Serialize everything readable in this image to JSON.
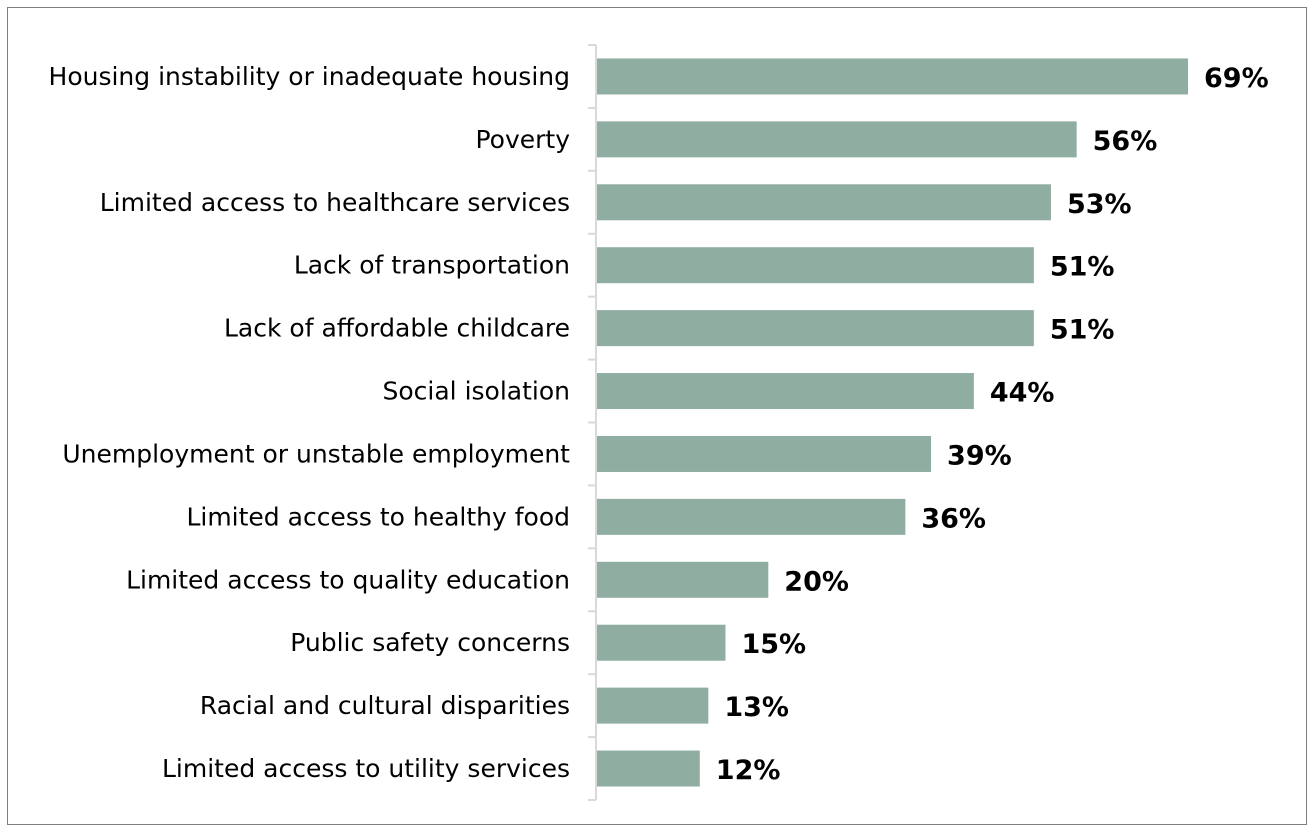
{
  "chart_data": {
    "type": "bar",
    "orientation": "horizontal",
    "title": "",
    "xlabel": "",
    "ylabel": "",
    "categories": [
      "Housing instability or inadequate housing",
      "Poverty",
      "Limited access to healthcare services",
      "Lack of transportation",
      "Lack of affordable childcare",
      "Social isolation",
      "Unemployment or unstable employment",
      "Limited access to healthy food",
      "Limited access to quality education",
      "Public safety concerns",
      "Racial and cultural disparities",
      "Limited access to utility services"
    ],
    "values": [
      69,
      56,
      53,
      51,
      51,
      44,
      39,
      36,
      20,
      15,
      13,
      12
    ],
    "value_labels": [
      "69%",
      "56%",
      "53%",
      "51%",
      "51%",
      "44%",
      "39%",
      "36%",
      "20%",
      "15%",
      "13%",
      "12%"
    ],
    "unit": "%",
    "xlim": [
      0,
      69
    ],
    "grid": false,
    "legend": "none",
    "colors": {
      "bar": "#8fada0",
      "axis": "#d9d9d9",
      "frame": "#7f7f7f",
      "text": "#000000"
    }
  }
}
